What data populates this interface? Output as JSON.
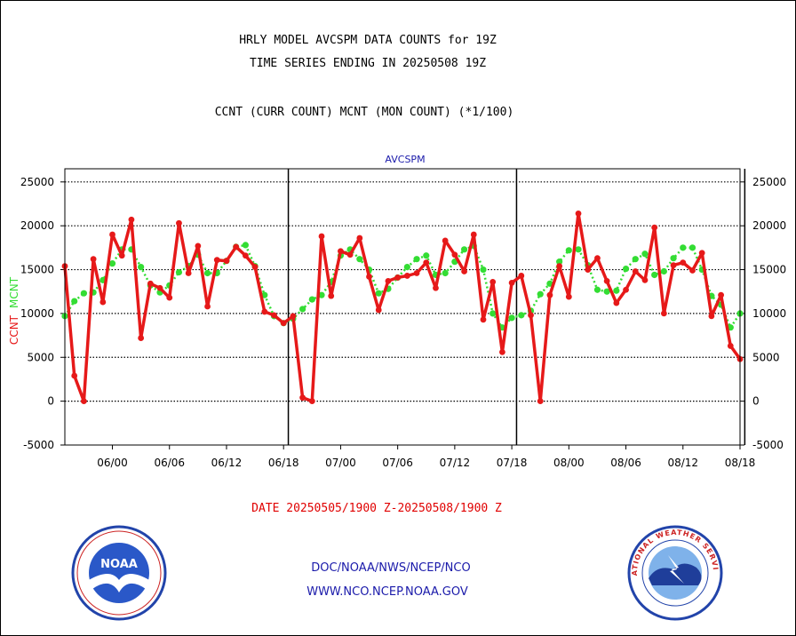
{
  "header": {
    "title_line1": "HRLY MODEL AVCSPM DATA COUNTS for 19Z",
    "title_line2": "TIME SERIES ENDING IN 20250508 19Z",
    "subtitle": "CCNT (CURR COUNT) MCNT (MON COUNT) (*1/100)"
  },
  "footer": {
    "date_range": "DATE 20250505/1900 Z-20250508/1900 Z",
    "credit": "DOC/NOAA/NWS/NCEP/NCO",
    "website": "WWW.NCO.NCEP.NOAA.GOV",
    "noaa_logo_text": "NOAA",
    "nws_logo_text": "NATIONAL WEATHER SERVICE"
  },
  "chart_data": {
    "type": "line",
    "title": "AVCSPM",
    "ylabel_left": "CCNT",
    "ylabel_right": "MCNT",
    "ylim": [
      -5000,
      26500
    ],
    "yticks": [
      -5000,
      0,
      5000,
      10000,
      15000,
      20000,
      25000
    ],
    "grid": true,
    "x_start_hour": 19,
    "xticks": [
      {
        "index": 5,
        "label": "06/00"
      },
      {
        "index": 11,
        "label": "06/06"
      },
      {
        "index": 17,
        "label": "06/12"
      },
      {
        "index": 23,
        "label": "06/18"
      },
      {
        "index": 29,
        "label": "07/00"
      },
      {
        "index": 35,
        "label": "07/06"
      },
      {
        "index": 41,
        "label": "07/12"
      },
      {
        "index": 47,
        "label": "07/18"
      },
      {
        "index": 53,
        "label": "08/00"
      },
      {
        "index": 59,
        "label": "08/06"
      },
      {
        "index": 65,
        "label": "08/12"
      },
      {
        "index": 71,
        "label": "08/18"
      }
    ],
    "day_boundaries": [
      23.5,
      47.5,
      71.5
    ],
    "series": [
      {
        "name": "CCNT",
        "color": "#e61919",
        "values": [
          15400,
          2900,
          0,
          16200,
          11300,
          19000,
          16600,
          20700,
          7200,
          13400,
          12900,
          11800,
          20300,
          14600,
          17700,
          10800,
          16100,
          16000,
          17600,
          16600,
          15300,
          10200,
          9800,
          8900,
          9700,
          400,
          0,
          18800,
          12000,
          17100,
          16700,
          18600,
          14200,
          10400,
          13700,
          14100,
          14300,
          14600,
          15800,
          12900,
          18300,
          16700,
          14800,
          19000,
          9300,
          13600,
          5600,
          13500,
          14300,
          9800,
          0,
          12100,
          15400,
          11900,
          21400,
          15000,
          16300,
          13700,
          11200,
          12700,
          14800,
          13800,
          19800,
          10000,
          15500,
          15800,
          14900,
          16900,
          9700,
          12100,
          6300,
          4800
        ]
      },
      {
        "name": "MCNT",
        "color": "#33dd33",
        "values": [
          9700,
          11400,
          12300,
          12400,
          13800,
          15700,
          17300,
          17300,
          15300,
          13200,
          12400,
          13200,
          14700,
          15400,
          16700,
          14600,
          14600,
          16000,
          17600,
          17800,
          15400,
          12100,
          9700,
          8900,
          9400,
          10500,
          11600,
          12100,
          13600,
          16600,
          17300,
          16200,
          15000,
          12300,
          12800,
          14100,
          15300,
          16200,
          16600,
          14400,
          14600,
          15900,
          17300,
          17700,
          15000,
          10000,
          8400,
          9500,
          9800,
          10300,
          12200,
          13400,
          15900,
          17200,
          17300,
          15500,
          12700,
          12500,
          12600,
          15100,
          16200,
          16800,
          14400,
          14800,
          16300,
          17500,
          17500,
          15000,
          12000,
          11000,
          8400,
          10000
        ]
      }
    ]
  }
}
